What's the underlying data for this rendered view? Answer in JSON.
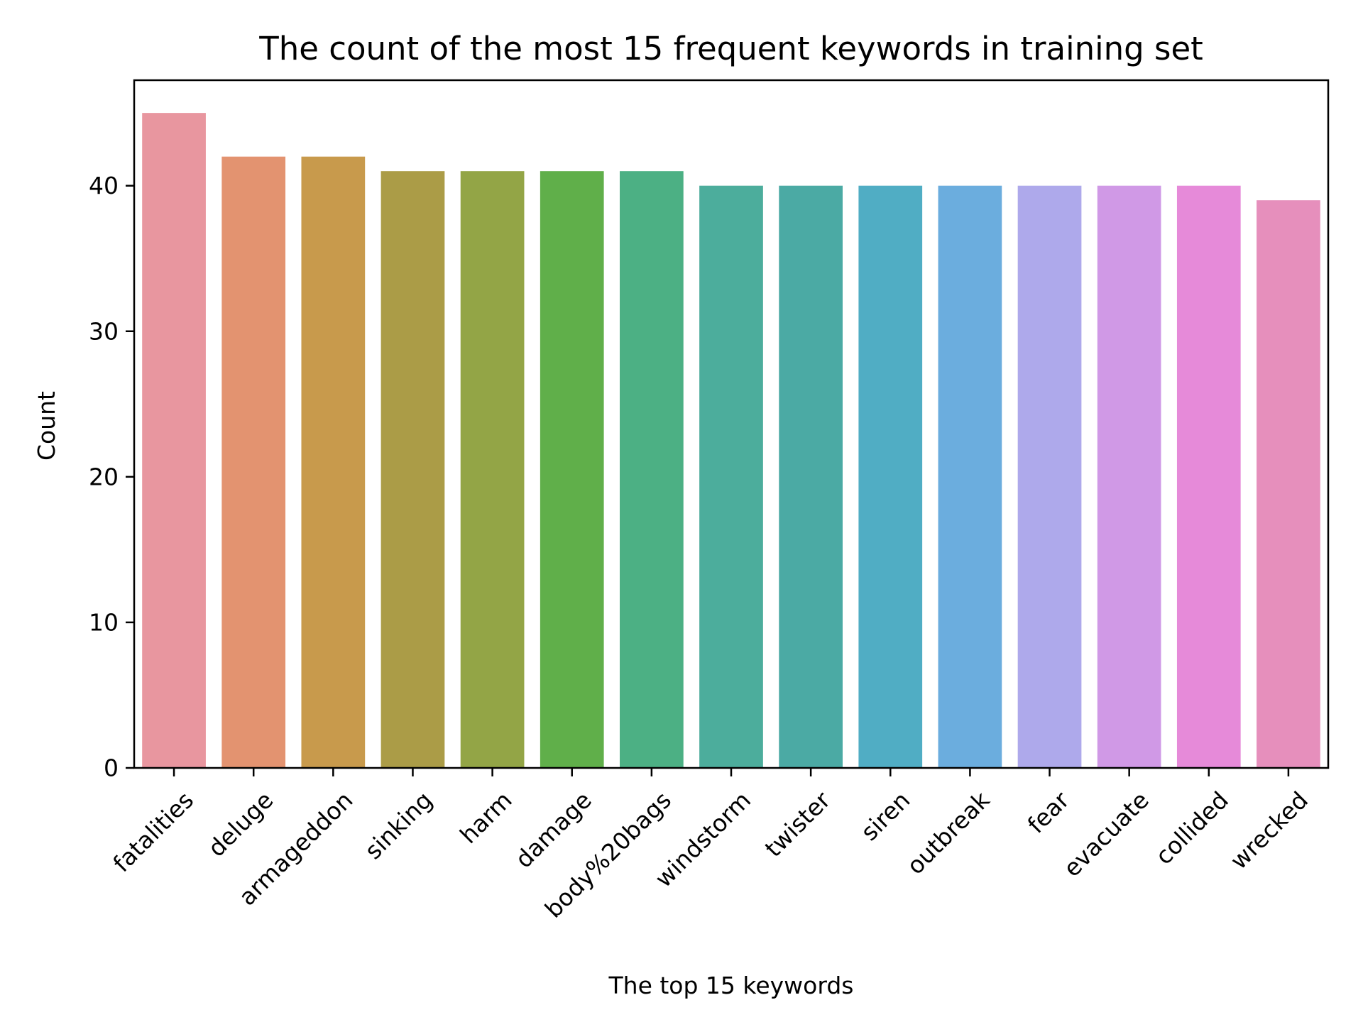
{
  "chart_data": {
    "type": "bar",
    "title": "The count of the most 15 frequent keywords in training set",
    "xlabel": "The top 15 keywords",
    "ylabel": "Count",
    "categories": [
      "fatalities",
      "deluge",
      "armageddon",
      "sinking",
      "harm",
      "damage",
      "body%20bags",
      "windstorm",
      "twister",
      "siren",
      "outbreak",
      "fear",
      "evacuate",
      "collided",
      "wrecked"
    ],
    "values": [
      45,
      42,
      42,
      41,
      41,
      41,
      41,
      40,
      40,
      40,
      40,
      40,
      40,
      40,
      39
    ],
    "colors": [
      "#e8969f",
      "#e39370",
      "#c89a4c",
      "#ab9c47",
      "#93a546",
      "#60af4a",
      "#4cb084",
      "#4cad9c",
      "#4baaa4",
      "#50adc4",
      "#6badde",
      "#aea9eb",
      "#d099e6",
      "#e68ad9",
      "#e68fbc"
    ],
    "ylim": [
      0,
      47.25
    ],
    "yticks": [
      0,
      10,
      20,
      30,
      40
    ],
    "grid": false,
    "legend": "none"
  }
}
